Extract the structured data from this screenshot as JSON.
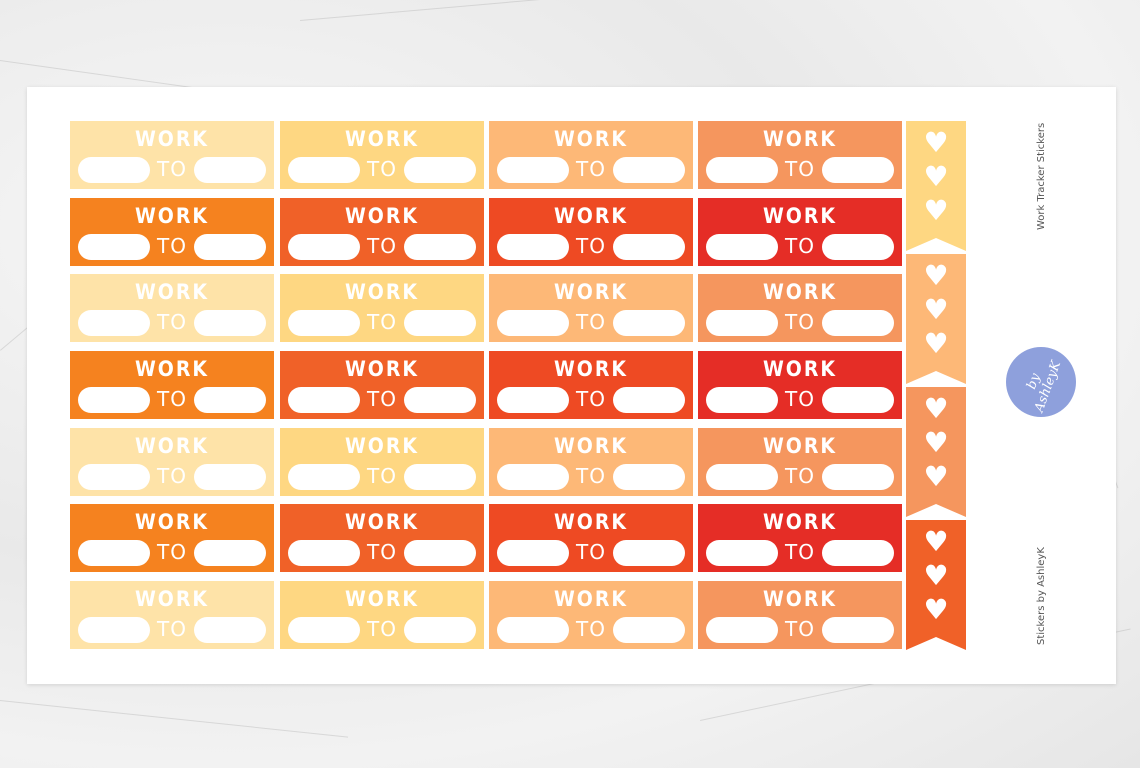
{
  "sticker_labels": {
    "top": "WORK",
    "middle": "TO"
  },
  "palette": {
    "light": [
      "#fee3a8",
      "#fed782",
      "#fdb877",
      "#f5965e"
    ],
    "dark": [
      "#f5821f",
      "#f06128",
      "#ee4a23",
      "#e52d26"
    ],
    "flags": [
      "#fed782",
      "#fdb877",
      "#f5965e",
      "#f06128"
    ],
    "logo": "#8ea0dc",
    "sheet": "#ffffff"
  },
  "sticker_rows": [
    "light",
    "dark",
    "light",
    "dark",
    "light",
    "dark",
    "light"
  ],
  "flag_icon": "heart-icon",
  "side_text": {
    "title": "Work Tracker Stickers",
    "credit": "Stickers by AshleyK"
  },
  "logo": {
    "text": "by AshleyK"
  }
}
